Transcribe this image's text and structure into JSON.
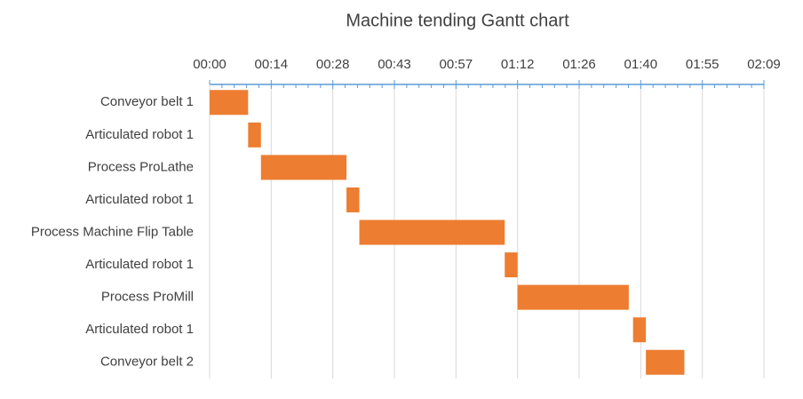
{
  "chart_data": {
    "type": "gantt",
    "title": "Machine tending Gantt chart",
    "categories": [
      "Conveyor belt 1",
      "Articulated robot 1",
      "Process ProLathe",
      "Articulated robot 1",
      "Process Machine Flip Table",
      "Articulated robot 1",
      "Process ProMill",
      "Articulated robot 1",
      "Conveyor belt 2"
    ],
    "starts": [
      0,
      9,
      12,
      32,
      35,
      69,
      72,
      99,
      102
    ],
    "durations": [
      9,
      3,
      20,
      3,
      34,
      3,
      26,
      3,
      9
    ],
    "color": "#ed7d31",
    "xlim": [
      0,
      129.6
    ],
    "xticks": [
      {
        "value": 0,
        "label": "00:00"
      },
      {
        "value": 14.4,
        "label": "00:14"
      },
      {
        "value": 28.8,
        "label": "00:28"
      },
      {
        "value": 43.2,
        "label": "00:43"
      },
      {
        "value": 57.6,
        "label": "00:57"
      },
      {
        "value": 72,
        "label": "01:12"
      },
      {
        "value": 86.4,
        "label": "01:26"
      },
      {
        "value": 100.8,
        "label": "01:40"
      },
      {
        "value": 115.2,
        "label": "01:55"
      },
      {
        "value": 129.6,
        "label": "02:09"
      }
    ],
    "minor_divisions": 5,
    "grid": true
  }
}
